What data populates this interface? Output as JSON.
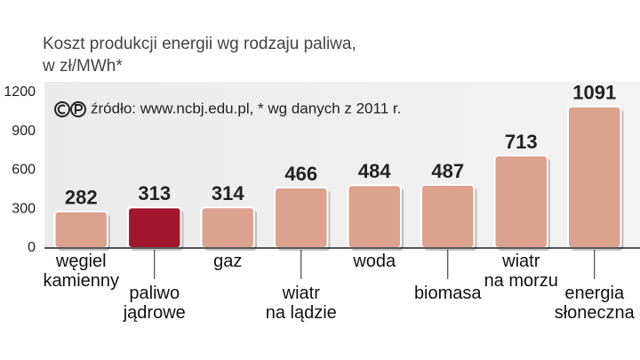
{
  "chart_data": {
    "type": "bar",
    "title": "Koszt produkcji energii wg rodzaju paliwa,",
    "subtitle": "w zł/MWh*",
    "note": "źródło: www.ncbj.edu.pl, * wg danych z 2011 r.",
    "categories": [
      "węgiel\nkamienny",
      "paliwo\njądrowe",
      "gaz",
      "wiatr\nna lądzie",
      "woda",
      "biomasa",
      "wiatr\nna morzu",
      "energia\nsłoneczna"
    ],
    "values": [
      282,
      313,
      314,
      466,
      484,
      487,
      713,
      1091
    ],
    "colors": [
      "#dba28d",
      "#a3172e",
      "#dba28d",
      "#dba28d",
      "#dba28d",
      "#dba28d",
      "#dba28d",
      "#dba28d"
    ],
    "ylim": [
      0,
      1200
    ],
    "yticks": [
      0,
      300,
      600,
      900,
      1200
    ],
    "grid": false
  }
}
